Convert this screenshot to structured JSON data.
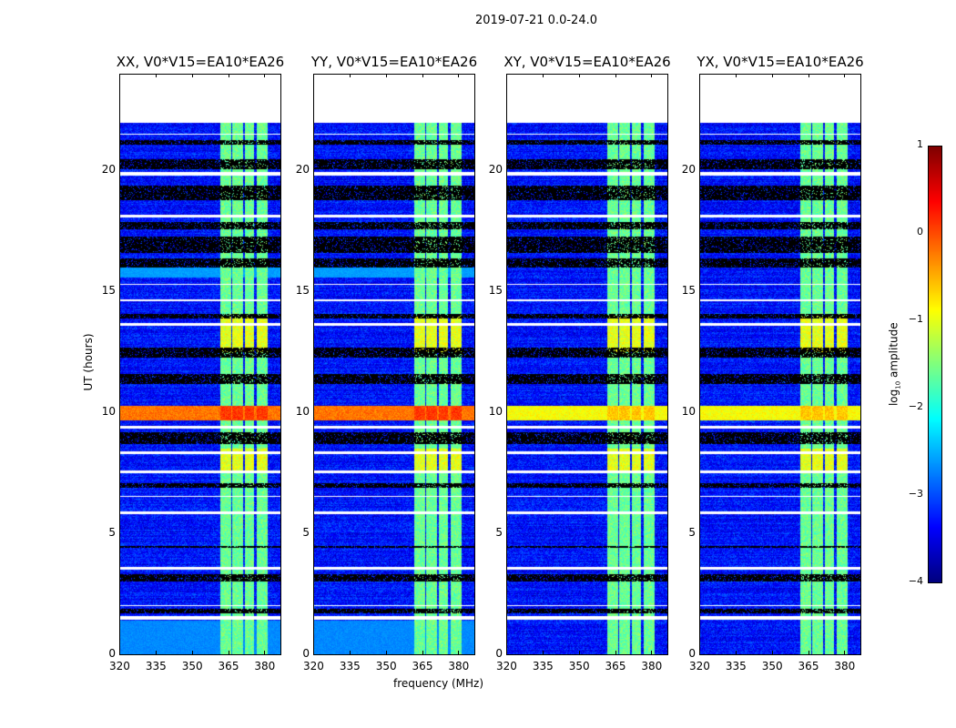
{
  "chart_data": {
    "type": "heatmap",
    "title": "2019-07-21 0.0-24.0",
    "xlabel": "frequency (MHz)",
    "ylabel": "UT (hours)",
    "xlim": [
      320,
      387
    ],
    "ylim": [
      0,
      24
    ],
    "xticks": [
      "320",
      "335",
      "350",
      "365",
      "380"
    ],
    "yticks": [
      "0",
      "5",
      "10",
      "15",
      "20"
    ],
    "panels": [
      {
        "title": "XX, V0*V15=EA10*EA26",
        "pol": "XX",
        "strong_band": true
      },
      {
        "title": "YY, V0*V15=EA10*EA26",
        "pol": "YY",
        "strong_band": true
      },
      {
        "title": "XY, V0*V15=EA10*EA26",
        "pol": "XY",
        "strong_band": false
      },
      {
        "title": "YX, V0*V15=EA10*EA26",
        "pol": "YX",
        "strong_band": false
      }
    ],
    "data_end_hour": 22,
    "background_log_amplitude": -3.3,
    "rfi_columns_MHz": [
      [
        362,
        366.5
      ],
      [
        367,
        371.5
      ],
      [
        372,
        376
      ],
      [
        377,
        381.5
      ]
    ],
    "rfi_log_amplitude": -1.6,
    "bright_rows_hours": [
      [
        9.7,
        10.3
      ]
    ],
    "black_rows_hours": [
      [
        1.7,
        1.9
      ],
      [
        3.0,
        3.3
      ],
      [
        4.4,
        4.5
      ],
      [
        6.9,
        7.1
      ],
      [
        8.7,
        9.2
      ],
      [
        11.2,
        11.6
      ],
      [
        12.3,
        12.7
      ],
      [
        13.9,
        14.1
      ],
      [
        16.0,
        16.4
      ],
      [
        16.6,
        17.3
      ],
      [
        17.6,
        17.9
      ],
      [
        18.8,
        19.4
      ],
      [
        20.1,
        20.5
      ],
      [
        21.1,
        21.3
      ]
    ],
    "white_rows_hours": [
      [
        1.45,
        1.6
      ],
      [
        2.0,
        2.05
      ],
      [
        3.5,
        3.6
      ],
      [
        5.8,
        5.9
      ],
      [
        6.5,
        6.55
      ],
      [
        7.5,
        7.6
      ],
      [
        8.3,
        8.4
      ],
      [
        9.35,
        9.45
      ],
      [
        13.6,
        13.7
      ],
      [
        14.6,
        14.7
      ],
      [
        15.3,
        15.35
      ],
      [
        18.1,
        18.2
      ],
      [
        19.8,
        19.95
      ],
      [
        21.5,
        21.55
      ]
    ],
    "colorbar": {
      "label": "log10 amplitude",
      "label_main": "log",
      "label_sub": "10",
      "label_rest": " amplitude",
      "range": [
        -4,
        1
      ],
      "ticks": [
        "1",
        "0",
        "−1",
        "−2",
        "−3",
        "−4"
      ],
      "colormap": "jet"
    }
  }
}
